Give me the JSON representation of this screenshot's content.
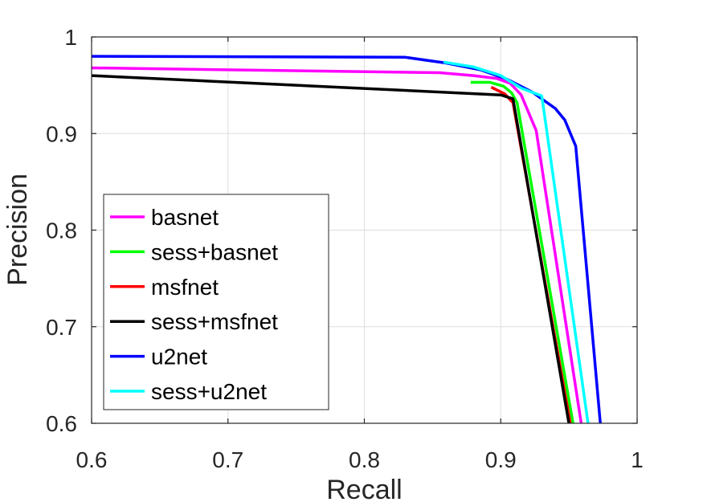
{
  "chart_data": {
    "type": "line",
    "xlabel": "Recall",
    "ylabel": "Precision",
    "xlim": [
      0.6,
      1.0
    ],
    "ylim": [
      0.6,
      1.0
    ],
    "xticks": [
      "0.6",
      "0.7",
      "0.8",
      "0.9",
      "1"
    ],
    "yticks": [
      "0.6",
      "0.7",
      "0.8",
      "0.9",
      "1"
    ],
    "grid": true,
    "legend_position": "bottom-left",
    "series": [
      {
        "name": "basnet",
        "color": "#ff00ff",
        "points": [
          [
            0.6,
            0.968
          ],
          [
            0.855,
            0.963
          ],
          [
            0.88,
            0.96
          ],
          [
            0.897,
            0.957
          ],
          [
            0.907,
            0.952
          ],
          [
            0.915,
            0.94
          ],
          [
            0.926,
            0.903
          ],
          [
            0.959,
            0.6
          ]
        ]
      },
      {
        "name": "sess+basnet",
        "color": "#00ff00",
        "points": [
          [
            0.878,
            0.953
          ],
          [
            0.892,
            0.953
          ],
          [
            0.902,
            0.949
          ],
          [
            0.908,
            0.942
          ],
          [
            0.912,
            0.932
          ],
          [
            0.953,
            0.6
          ]
        ]
      },
      {
        "name": "msfnet",
        "color": "#ff0000",
        "points": [
          [
            0.893,
            0.948
          ],
          [
            0.903,
            0.941
          ],
          [
            0.909,
            0.932
          ],
          [
            0.951,
            0.6
          ]
        ]
      },
      {
        "name": "sess+msfnet",
        "color": "#000000",
        "points": [
          [
            0.6,
            0.96
          ],
          [
            0.9,
            0.94
          ],
          [
            0.909,
            0.936
          ],
          [
            0.95,
            0.6
          ]
        ]
      },
      {
        "name": "u2net",
        "color": "#0000ff",
        "points": [
          [
            0.6,
            0.98
          ],
          [
            0.83,
            0.979
          ],
          [
            0.86,
            0.973
          ],
          [
            0.885,
            0.966
          ],
          [
            0.905,
            0.956
          ],
          [
            0.923,
            0.943
          ],
          [
            0.94,
            0.926
          ],
          [
            0.947,
            0.914
          ],
          [
            0.955,
            0.887
          ],
          [
            0.973,
            0.6
          ]
        ]
      },
      {
        "name": "sess+u2net",
        "color": "#00ffff",
        "points": [
          [
            0.858,
            0.974
          ],
          [
            0.88,
            0.969
          ],
          [
            0.9,
            0.96
          ],
          [
            0.915,
            0.947
          ],
          [
            0.93,
            0.939
          ],
          [
            0.931,
            0.93
          ],
          [
            0.964,
            0.6
          ]
        ]
      }
    ]
  }
}
